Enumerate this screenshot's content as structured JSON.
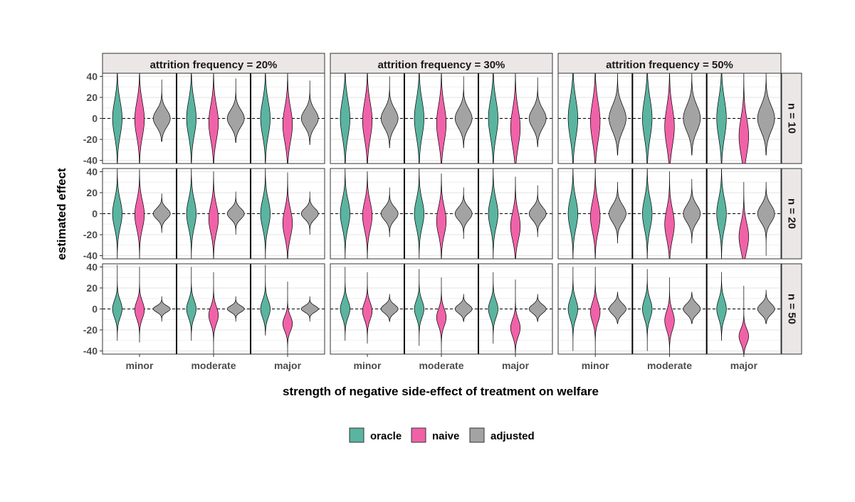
{
  "chart_data": {
    "type": "violin",
    "title": "",
    "xlabel": "strength of negative side-effect of treatment on welfare",
    "ylabel": "estimated effect",
    "ylim": [
      -43,
      43
    ],
    "y_ticks": [
      -40,
      -20,
      0,
      20,
      40
    ],
    "reference_line_y": 0,
    "categories": [
      "minor",
      "moderate",
      "major"
    ],
    "facet_cols": [
      "attrition frequency = 20%",
      "attrition frequency = 30%",
      "attrition frequency = 50%"
    ],
    "facet_rows": [
      "n = 10",
      "n = 20",
      "n = 50"
    ],
    "series": [
      {
        "name": "oracle",
        "color": "#5ab4a0"
      },
      {
        "name": "naive",
        "color": "#f062a8"
      },
      {
        "name": "adjusted",
        "color": "#a3a3a3"
      }
    ],
    "legend_position": "bottom",
    "grid": true,
    "panels": [
      {
        "row": 0,
        "col": 0,
        "groups": [
          {
            "category": "minor",
            "violins": [
              {
                "series": "oracle",
                "min": -43,
                "max": 43,
                "center": 0,
                "spread": 16
              },
              {
                "series": "naive",
                "min": -43,
                "max": 43,
                "center": -1,
                "spread": 16
              },
              {
                "series": "adjusted",
                "min": -22,
                "max": 37,
                "center": 0,
                "spread": 8
              }
            ]
          },
          {
            "category": "moderate",
            "violins": [
              {
                "series": "oracle",
                "min": -43,
                "max": 43,
                "center": 0,
                "spread": 16
              },
              {
                "series": "naive",
                "min": -43,
                "max": 43,
                "center": -4,
                "spread": 16
              },
              {
                "series": "adjusted",
                "min": -23,
                "max": 38,
                "center": 0,
                "spread": 8
              }
            ]
          },
          {
            "category": "major",
            "violins": [
              {
                "series": "oracle",
                "min": -43,
                "max": 43,
                "center": 0,
                "spread": 16
              },
              {
                "series": "naive",
                "min": -43,
                "max": 43,
                "center": -6,
                "spread": 16
              },
              {
                "series": "adjusted",
                "min": -25,
                "max": 36,
                "center": 0,
                "spread": 8
              }
            ]
          }
        ]
      },
      {
        "row": 0,
        "col": 1,
        "groups": [
          {
            "category": "minor",
            "violins": [
              {
                "series": "oracle",
                "min": -43,
                "max": 43,
                "center": 0,
                "spread": 17
              },
              {
                "series": "naive",
                "min": -43,
                "max": 43,
                "center": -2,
                "spread": 17
              },
              {
                "series": "adjusted",
                "min": -28,
                "max": 40,
                "center": 0,
                "spread": 9
              }
            ]
          },
          {
            "category": "moderate",
            "violins": [
              {
                "series": "oracle",
                "min": -43,
                "max": 43,
                "center": 0,
                "spread": 17
              },
              {
                "series": "naive",
                "min": -43,
                "max": 43,
                "center": -5,
                "spread": 17
              },
              {
                "series": "adjusted",
                "min": -28,
                "max": 40,
                "center": 0,
                "spread": 9
              }
            ]
          },
          {
            "category": "major",
            "violins": [
              {
                "series": "oracle",
                "min": -43,
                "max": 43,
                "center": 0,
                "spread": 17
              },
              {
                "series": "naive",
                "min": -43,
                "max": 43,
                "center": -9,
                "spread": 17
              },
              {
                "series": "adjusted",
                "min": -27,
                "max": 39,
                "center": 0,
                "spread": 9
              }
            ]
          }
        ]
      },
      {
        "row": 0,
        "col": 2,
        "groups": [
          {
            "category": "minor",
            "violins": [
              {
                "series": "oracle",
                "min": -43,
                "max": 43,
                "center": 0,
                "spread": 18
              },
              {
                "series": "naive",
                "min": -43,
                "max": 43,
                "center": -3,
                "spread": 18
              },
              {
                "series": "adjusted",
                "min": -35,
                "max": 43,
                "center": 0,
                "spread": 12
              }
            ]
          },
          {
            "category": "moderate",
            "violins": [
              {
                "series": "oracle",
                "min": -43,
                "max": 43,
                "center": 0,
                "spread": 18
              },
              {
                "series": "naive",
                "min": -43,
                "max": 43,
                "center": -8,
                "spread": 18
              },
              {
                "series": "adjusted",
                "min": -35,
                "max": 43,
                "center": 0,
                "spread": 12
              }
            ]
          },
          {
            "category": "major",
            "violins": [
              {
                "series": "oracle",
                "min": -43,
                "max": 43,
                "center": 0,
                "spread": 18
              },
              {
                "series": "naive",
                "min": -43,
                "max": 43,
                "center": -17,
                "spread": 17
              },
              {
                "series": "adjusted",
                "min": -35,
                "max": 43,
                "center": 0,
                "spread": 12
              }
            ]
          }
        ]
      },
      {
        "row": 1,
        "col": 0,
        "groups": [
          {
            "category": "minor",
            "violins": [
              {
                "series": "oracle",
                "min": -43,
                "max": 43,
                "center": 0,
                "spread": 13
              },
              {
                "series": "naive",
                "min": -43,
                "max": 42,
                "center": -1,
                "spread": 13
              },
              {
                "series": "adjusted",
                "min": -18,
                "max": 19,
                "center": 0,
                "spread": 5
              }
            ]
          },
          {
            "category": "moderate",
            "violins": [
              {
                "series": "oracle",
                "min": -43,
                "max": 43,
                "center": 0,
                "spread": 13
              },
              {
                "series": "naive",
                "min": -43,
                "max": 40,
                "center": -5,
                "spread": 13
              },
              {
                "series": "adjusted",
                "min": -20,
                "max": 21,
                "center": 0,
                "spread": 5
              }
            ]
          },
          {
            "category": "major",
            "violins": [
              {
                "series": "oracle",
                "min": -43,
                "max": 43,
                "center": 0,
                "spread": 13
              },
              {
                "series": "naive",
                "min": -43,
                "max": 39,
                "center": -9,
                "spread": 13
              },
              {
                "series": "adjusted",
                "min": -20,
                "max": 21,
                "center": 0,
                "spread": 5
              }
            ]
          }
        ]
      },
      {
        "row": 1,
        "col": 1,
        "groups": [
          {
            "category": "minor",
            "violins": [
              {
                "series": "oracle",
                "min": -43,
                "max": 43,
                "center": 0,
                "spread": 13
              },
              {
                "series": "naive",
                "min": -43,
                "max": 40,
                "center": -2,
                "spread": 13
              },
              {
                "series": "adjusted",
                "min": -22,
                "max": 25,
                "center": 0,
                "spread": 6
              }
            ]
          },
          {
            "category": "moderate",
            "violins": [
              {
                "series": "oracle",
                "min": -43,
                "max": 43,
                "center": 0,
                "spread": 13
              },
              {
                "series": "naive",
                "min": -43,
                "max": 38,
                "center": -7,
                "spread": 13
              },
              {
                "series": "adjusted",
                "min": -24,
                "max": 25,
                "center": 0,
                "spread": 6
              }
            ]
          },
          {
            "category": "major",
            "violins": [
              {
                "series": "oracle",
                "min": -43,
                "max": 43,
                "center": 0,
                "spread": 13
              },
              {
                "series": "naive",
                "min": -43,
                "max": 35,
                "center": -12,
                "spread": 13
              },
              {
                "series": "adjusted",
                "min": -22,
                "max": 27,
                "center": 0,
                "spread": 6
              }
            ]
          }
        ]
      },
      {
        "row": 1,
        "col": 2,
        "groups": [
          {
            "category": "minor",
            "violins": [
              {
                "series": "oracle",
                "min": -43,
                "max": 43,
                "center": 0,
                "spread": 14
              },
              {
                "series": "naive",
                "min": -43,
                "max": 43,
                "center": -3,
                "spread": 14
              },
              {
                "series": "adjusted",
                "min": -28,
                "max": 30,
                "center": 0,
                "spread": 8
              }
            ]
          },
          {
            "category": "moderate",
            "violins": [
              {
                "series": "oracle",
                "min": -43,
                "max": 43,
                "center": 0,
                "spread": 14
              },
              {
                "series": "naive",
                "min": -43,
                "max": 40,
                "center": -10,
                "spread": 14
              },
              {
                "series": "adjusted",
                "min": -28,
                "max": 33,
                "center": 0,
                "spread": 8
              }
            ]
          },
          {
            "category": "major",
            "violins": [
              {
                "series": "oracle",
                "min": -43,
                "max": 43,
                "center": 0,
                "spread": 14
              },
              {
                "series": "naive",
                "min": -43,
                "max": 30,
                "center": -22,
                "spread": 13
              },
              {
                "series": "adjusted",
                "min": -40,
                "max": 30,
                "center": 0,
                "spread": 8
              }
            ]
          }
        ]
      },
      {
        "row": 2,
        "col": 0,
        "groups": [
          {
            "category": "minor",
            "violins": [
              {
                "series": "oracle",
                "min": -30,
                "max": 42,
                "center": 0,
                "spread": 8
              },
              {
                "series": "naive",
                "min": -32,
                "max": 40,
                "center": -1,
                "spread": 8
              },
              {
                "series": "adjusted",
                "min": -12,
                "max": 12,
                "center": 0,
                "spread": 3
              }
            ]
          },
          {
            "category": "moderate",
            "violins": [
              {
                "series": "oracle",
                "min": -30,
                "max": 40,
                "center": 0,
                "spread": 8
              },
              {
                "series": "naive",
                "min": -43,
                "max": 35,
                "center": -6,
                "spread": 8
              },
              {
                "series": "adjusted",
                "min": -12,
                "max": 12,
                "center": 0,
                "spread": 3
              }
            ]
          },
          {
            "category": "major",
            "violins": [
              {
                "series": "oracle",
                "min": -25,
                "max": 42,
                "center": 0,
                "spread": 8
              },
              {
                "series": "naive",
                "min": -43,
                "max": 26,
                "center": -14,
                "spread": 7
              },
              {
                "series": "adjusted",
                "min": -12,
                "max": 12,
                "center": 0,
                "spread": 3
              }
            ]
          }
        ]
      },
      {
        "row": 2,
        "col": 1,
        "groups": [
          {
            "category": "minor",
            "violins": [
              {
                "series": "oracle",
                "min": -30,
                "max": 40,
                "center": 0,
                "spread": 8
              },
              {
                "series": "naive",
                "min": -33,
                "max": 35,
                "center": -2,
                "spread": 8
              },
              {
                "series": "adjusted",
                "min": -12,
                "max": 14,
                "center": 0,
                "spread": 4
              }
            ]
          },
          {
            "category": "moderate",
            "violins": [
              {
                "series": "oracle",
                "min": -35,
                "max": 38,
                "center": 0,
                "spread": 8
              },
              {
                "series": "naive",
                "min": -43,
                "max": 30,
                "center": -8,
                "spread": 8
              },
              {
                "series": "adjusted",
                "min": -12,
                "max": 14,
                "center": 0,
                "spread": 4
              }
            ]
          },
          {
            "category": "major",
            "violins": [
              {
                "series": "oracle",
                "min": -33,
                "max": 35,
                "center": 0,
                "spread": 8
              },
              {
                "series": "naive",
                "min": -43,
                "max": 28,
                "center": -18,
                "spread": 8
              },
              {
                "series": "adjusted",
                "min": -12,
                "max": 14,
                "center": 0,
                "spread": 4
              }
            ]
          }
        ]
      },
      {
        "row": 2,
        "col": 2,
        "groups": [
          {
            "category": "minor",
            "violins": [
              {
                "series": "oracle",
                "min": -40,
                "max": 40,
                "center": 0,
                "spread": 9
              },
              {
                "series": "naive",
                "min": -43,
                "max": 40,
                "center": -3,
                "spread": 9
              },
              {
                "series": "adjusted",
                "min": -14,
                "max": 16,
                "center": 0,
                "spread": 5
              }
            ]
          },
          {
            "category": "moderate",
            "violins": [
              {
                "series": "oracle",
                "min": -40,
                "max": 38,
                "center": 0,
                "spread": 9
              },
              {
                "series": "naive",
                "min": -43,
                "max": 30,
                "center": -11,
                "spread": 9
              },
              {
                "series": "adjusted",
                "min": -14,
                "max": 16,
                "center": 0,
                "spread": 5
              }
            ]
          },
          {
            "category": "major",
            "violins": [
              {
                "series": "oracle",
                "min": -30,
                "max": 35,
                "center": 0,
                "spread": 9
              },
              {
                "series": "naive",
                "min": -43,
                "max": 22,
                "center": -26,
                "spread": 7
              },
              {
                "series": "adjusted",
                "min": -14,
                "max": 18,
                "center": 0,
                "spread": 5
              }
            ]
          }
        ]
      }
    ]
  }
}
